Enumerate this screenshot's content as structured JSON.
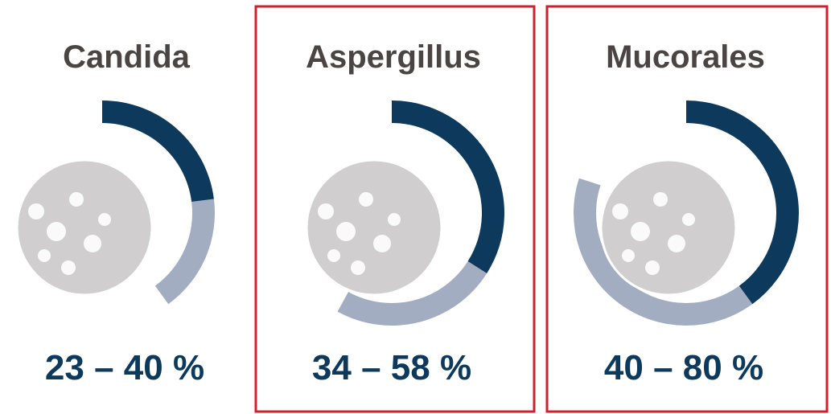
{
  "chart_data": {
    "type": "radial-range",
    "categories": [
      "Candida",
      "Aspergillus",
      "Mucorales"
    ],
    "low": [
      23,
      34,
      40
    ],
    "high": [
      40,
      58,
      80
    ],
    "value_labels": [
      "23 – 40 %",
      "34 – 58 %",
      "40 – 80 %"
    ],
    "low_color": "#0d3a5c",
    "high_color": "#a3adc2",
    "highlight": [
      false,
      true,
      true
    ],
    "highlight_color": "#d0202e"
  }
}
